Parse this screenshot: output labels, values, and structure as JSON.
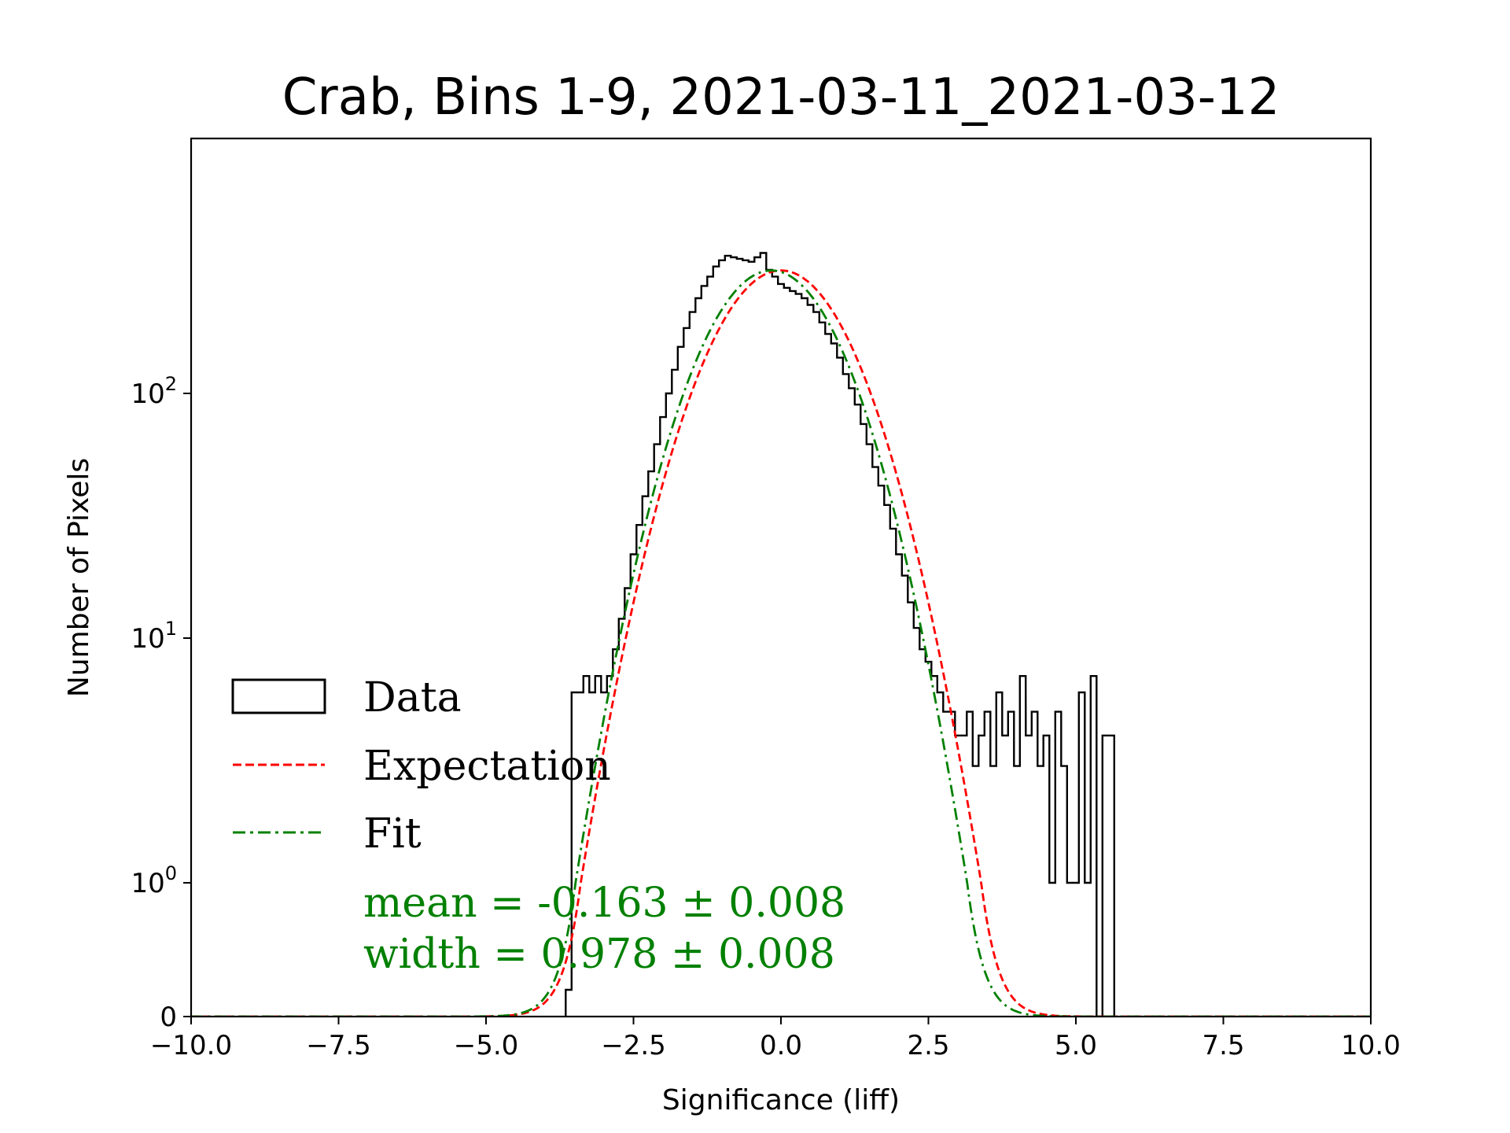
{
  "chart_data": {
    "type": "histogram",
    "title": "Crab, Bins 1-9, 2021-03-11_2021-03-12",
    "xlabel": "Significance (liff)",
    "ylabel": "Number of Pixels",
    "xlim": [
      -10,
      10
    ],
    "yscale": "symlog",
    "x_ticks": [
      "−10.0",
      "−7.5",
      "−5.0",
      "−2.5",
      "0.0",
      "2.5",
      "5.0",
      "7.5",
      "10.0"
    ],
    "x_tick_values": [
      -10,
      -7.5,
      -5,
      -2.5,
      0,
      2.5,
      5,
      7.5,
      10
    ],
    "y_ticks": [
      {
        "value": 0,
        "base": "0",
        "exp": ""
      },
      {
        "value": 1,
        "base": "10",
        "exp": "0"
      },
      {
        "value": 10,
        "base": "10",
        "exp": "1"
      },
      {
        "value": 100,
        "base": "10",
        "exp": "2"
      }
    ],
    "legend": {
      "position": "lower-left",
      "entries": [
        {
          "label": "Data",
          "style": "step",
          "color": "#000000"
        },
        {
          "label": "Expectation",
          "style": "dashed",
          "color": "#ff0000"
        },
        {
          "label": "Fit",
          "style": "dashdot",
          "color": "#008000"
        }
      ]
    },
    "annotation": {
      "mean_text": "mean = -0.163 ± 0.008",
      "width_text": "width = 0.978 ± 0.008",
      "color": "#008000"
    },
    "expectation": {
      "mean": 0.0,
      "width": 1.0,
      "peak": 318,
      "color": "#ff0000"
    },
    "fit": {
      "mean": -0.163,
      "width": 0.978,
      "peak": 318,
      "color": "#008000"
    },
    "data_series": {
      "bin_width": 0.1,
      "bins_x": [
        -3.6,
        -3.5,
        -3.4,
        -3.3,
        -3.2,
        -3.1,
        -3.0,
        -2.9,
        -2.8,
        -2.7,
        -2.6,
        -2.5,
        -2.4,
        -2.3,
        -2.2,
        -2.1,
        -2.0,
        -1.9,
        -1.8,
        -1.7,
        -1.6,
        -1.5,
        -1.4,
        -1.3,
        -1.2,
        -1.1,
        -1.0,
        -0.9,
        -0.8,
        -0.7,
        -0.6,
        -0.5,
        -0.4,
        -0.3,
        -0.2,
        -0.1,
        0.0,
        0.1,
        0.2,
        0.3,
        0.4,
        0.5,
        0.6,
        0.7,
        0.8,
        0.9,
        1.0,
        1.1,
        1.2,
        1.3,
        1.4,
        1.5,
        1.6,
        1.7,
        1.8,
        1.9,
        2.0,
        2.1,
        2.2,
        2.3,
        2.4,
        2.5,
        2.6,
        2.7,
        2.8,
        2.9,
        3.0,
        3.1,
        3.2,
        3.3,
        3.4,
        3.5,
        3.6,
        3.7,
        3.8,
        3.9,
        4.0,
        4.1,
        4.2,
        4.3,
        4.4,
        4.5,
        4.6,
        4.7,
        4.8,
        4.9,
        5.0,
        5.1,
        5.2,
        5.3,
        5.4,
        5.5,
        5.6
      ],
      "counts": [
        0.2,
        6,
        6,
        7,
        6,
        7,
        6,
        7,
        9,
        12,
        16,
        22,
        29,
        38,
        48,
        62,
        80,
        100,
        125,
        155,
        185,
        215,
        245,
        275,
        300,
        330,
        350,
        365,
        360,
        355,
        350,
        345,
        360,
        375,
        320,
        300,
        280,
        270,
        262,
        255,
        245,
        230,
        215,
        195,
        175,
        160,
        140,
        120,
        105,
        90,
        75,
        62,
        50,
        42,
        35,
        28,
        22,
        18,
        14,
        11,
        9,
        8,
        7,
        6,
        5,
        5,
        4,
        4,
        5,
        3,
        4,
        5,
        3,
        6,
        4,
        5,
        3,
        7,
        4,
        5,
        3,
        4,
        1,
        5,
        3,
        1,
        1,
        6,
        1,
        7,
        0,
        4,
        4
      ]
    }
  }
}
